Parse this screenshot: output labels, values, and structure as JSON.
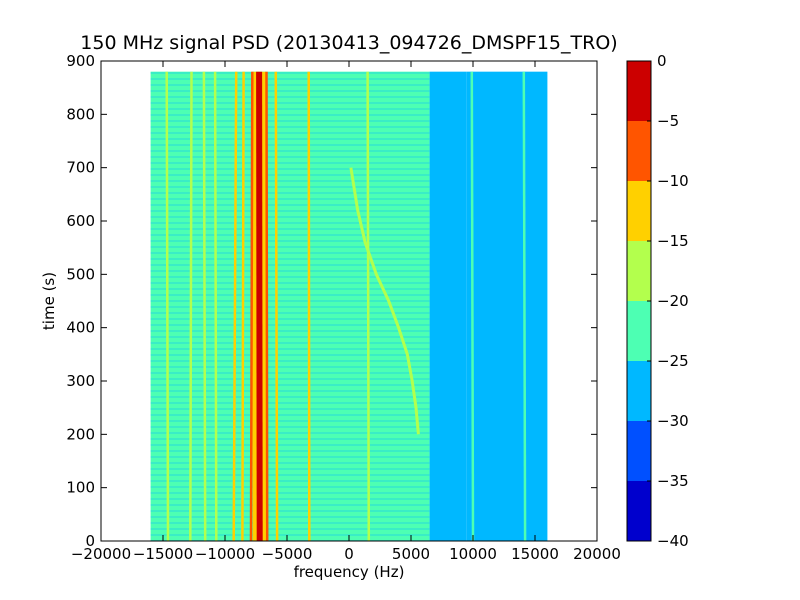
{
  "chart_data": {
    "type": "heatmap",
    "title": "150 MHz signal PSD (20130413_094726_DMSPF15_TRO)",
    "xlabel": "frequency (Hz)",
    "ylabel": "time (s)",
    "xlim": [
      -20000,
      20000
    ],
    "ylim": [
      0,
      900
    ],
    "data_extent": {
      "x": [
        -16000,
        16000
      ],
      "y": [
        0,
        880
      ]
    },
    "xticks": [
      -20000,
      -15000,
      -10000,
      -5000,
      0,
      5000,
      10000,
      15000,
      20000
    ],
    "xtick_labels": [
      "−20000",
      "−15000",
      "−10000",
      "−5000",
      "0",
      "5000",
      "10000",
      "15000",
      "20000"
    ],
    "yticks": [
      0,
      100,
      200,
      300,
      400,
      500,
      600,
      700,
      800,
      900
    ],
    "ytick_labels": [
      "0",
      "100",
      "200",
      "300",
      "400",
      "500",
      "600",
      "700",
      "800",
      "900"
    ],
    "colorbar": {
      "range": [
        -40,
        0
      ],
      "ticks": [
        0,
        -5,
        -10,
        -15,
        -20,
        -25,
        -30,
        -35,
        -40
      ],
      "tick_labels": [
        "0",
        "−5",
        "−10",
        "−15",
        "−20",
        "−25",
        "−30",
        "−35",
        "−40"
      ],
      "levels": [
        {
          "from": -40,
          "to": -35,
          "color": "#0000cd"
        },
        {
          "from": -35,
          "to": -30,
          "color": "#0050ff"
        },
        {
          "from": -30,
          "to": -25,
          "color": "#00b8ff"
        },
        {
          "from": -25,
          "to": -20,
          "color": "#4dffb3"
        },
        {
          "from": -20,
          "to": -15,
          "color": "#b3ff4d"
        },
        {
          "from": -15,
          "to": -10,
          "color": "#ffd000"
        },
        {
          "from": -10,
          "to": -5,
          "color": "#ff5500"
        },
        {
          "from": -5,
          "to": 0,
          "color": "#cc0000"
        }
      ]
    },
    "regions": [
      {
        "x": [
          -16000,
          6500
        ],
        "level_db": -22.5,
        "color": "#4dffb3"
      },
      {
        "x": [
          6500,
          9500
        ],
        "level_db": -27.5,
        "color": "#00b8ff"
      },
      {
        "x": [
          9500,
          16000
        ],
        "level_db": -27.5,
        "color": "#00b8ff"
      }
    ],
    "features": [
      {
        "name": "carrier",
        "points": [
          [
            -7200,
            0
          ],
          [
            -7250,
            880
          ]
        ],
        "level_db": -2.5,
        "color": "#cc0000"
      },
      {
        "name": "line",
        "points": [
          [
            -7900,
            0
          ],
          [
            -7800,
            880
          ]
        ],
        "level_db": -7.5,
        "color": "#ff5500"
      },
      {
        "name": "line",
        "points": [
          [
            -6600,
            0
          ],
          [
            -6650,
            880
          ]
        ],
        "level_db": -7.5,
        "color": "#ff5500"
      },
      {
        "name": "line",
        "points": [
          [
            -8600,
            0
          ],
          [
            -8500,
            880
          ]
        ],
        "level_db": -12.5,
        "color": "#ffd000"
      },
      {
        "name": "line",
        "points": [
          [
            -5800,
            0
          ],
          [
            -5900,
            880
          ]
        ],
        "level_db": -12.5,
        "color": "#ffd000"
      },
      {
        "name": "line",
        "points": [
          [
            -9300,
            0
          ],
          [
            -9100,
            880
          ]
        ],
        "level_db": -12.5,
        "color": "#ffd000"
      },
      {
        "name": "line",
        "points": [
          [
            -3200,
            0
          ],
          [
            -3250,
            880
          ]
        ],
        "level_db": -12.5,
        "color": "#ffd000"
      },
      {
        "name": "line",
        "points": [
          [
            -11600,
            0
          ],
          [
            -11700,
            880
          ]
        ],
        "level_db": -17.5,
        "color": "#b3ff4d"
      },
      {
        "name": "line",
        "points": [
          [
            -12800,
            0
          ],
          [
            -12700,
            880
          ]
        ],
        "level_db": -17.5,
        "color": "#b3ff4d"
      },
      {
        "name": "line",
        "points": [
          [
            -14600,
            0
          ],
          [
            -14700,
            880
          ]
        ],
        "level_db": -17.5,
        "color": "#b3ff4d"
      },
      {
        "name": "line",
        "points": [
          [
            -10700,
            0
          ],
          [
            -10800,
            880
          ]
        ],
        "level_db": -17.5,
        "color": "#b3ff4d"
      },
      {
        "name": "line",
        "points": [
          [
            1600,
            0
          ],
          [
            1500,
            880
          ]
        ],
        "level_db": -17.5,
        "color": "#b3ff4d"
      },
      {
        "name": "doppler-trace",
        "points": [
          [
            5600,
            200
          ],
          [
            5400,
            250
          ],
          [
            5100,
            300
          ],
          [
            4700,
            350
          ],
          [
            4000,
            400
          ],
          [
            3200,
            450
          ],
          [
            2200,
            500
          ],
          [
            1300,
            560
          ],
          [
            700,
            620
          ],
          [
            150,
            700
          ]
        ],
        "level_db": -17.5,
        "color": "#b3ff4d"
      },
      {
        "name": "line",
        "points": [
          [
            10000,
            0
          ],
          [
            9900,
            880
          ]
        ],
        "level_db": -22.5,
        "color": "#4dffb3"
      },
      {
        "name": "line",
        "points": [
          [
            14200,
            0
          ],
          [
            14100,
            880
          ]
        ],
        "level_db": -22.5,
        "color": "#4dffb3"
      }
    ]
  }
}
